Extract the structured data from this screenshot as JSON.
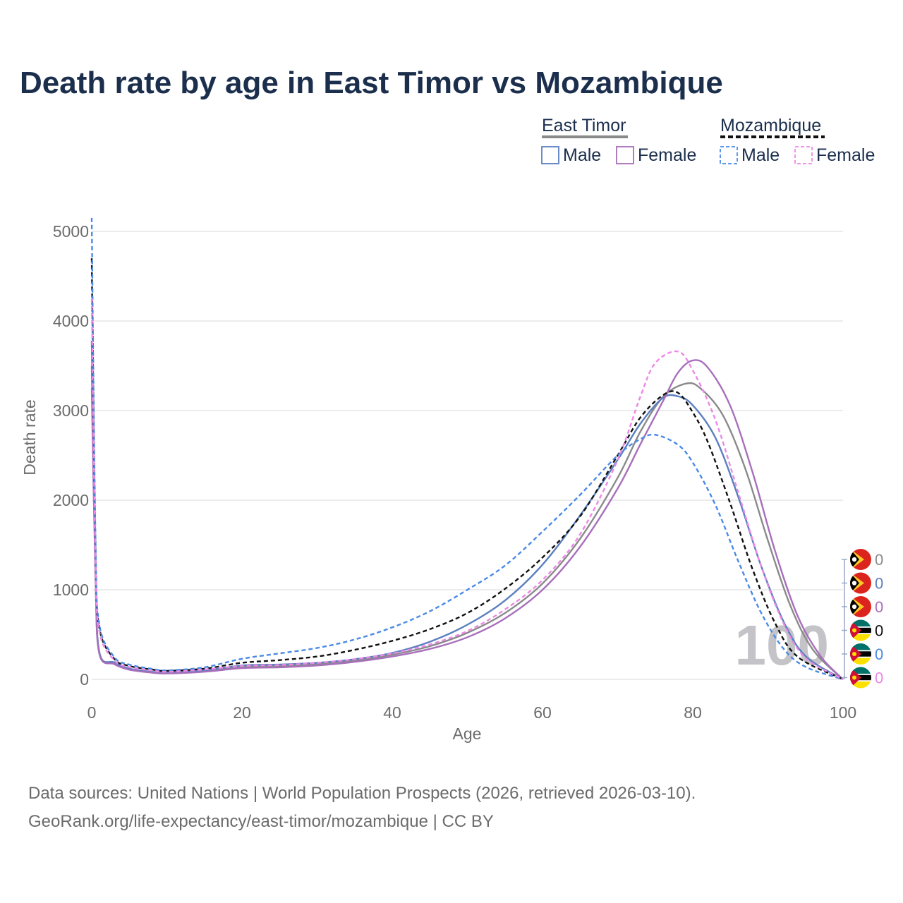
{
  "chart_data": {
    "type": "line",
    "title": "Death rate by age in East Timor vs Mozambique",
    "xlabel": "Age",
    "ylabel": "Death rate",
    "xlim": [
      0,
      100
    ],
    "ylim": [
      0,
      5000
    ],
    "x_ticks": [
      "0",
      "20",
      "40",
      "60",
      "80",
      "100"
    ],
    "y_ticks": [
      "0",
      "1000",
      "2000",
      "3000",
      "4000",
      "5000"
    ],
    "grid": true,
    "watermark": "100",
    "legend": {
      "placement": "top-right",
      "groups": [
        {
          "name": "East Timor",
          "style": "solid",
          "color": "#8a8a8a",
          "items": [
            {
              "label": "Male",
              "color": "#5b7fbf"
            },
            {
              "label": "Female",
              "color": "#a86fbb"
            }
          ]
        },
        {
          "name": "Mozambique",
          "style": "dashed",
          "color": "#111111",
          "items": [
            {
              "label": "Male",
              "color": "#4a8ae6"
            },
            {
              "label": "Female",
              "color": "#ec88e6"
            }
          ]
        }
      ]
    },
    "series": [
      {
        "name": "East Timor Total",
        "country": "East Timor",
        "color": "#8a8a8a",
        "dash": false,
        "end_label": "0",
        "points": [
          [
            0,
            3500
          ],
          [
            0.5,
            1200
          ],
          [
            1,
            300
          ],
          [
            3,
            180
          ],
          [
            5,
            115
          ],
          [
            8,
            82
          ],
          [
            10,
            72
          ],
          [
            15,
            95
          ],
          [
            20,
            140
          ],
          [
            25,
            150
          ],
          [
            30,
            170
          ],
          [
            35,
            210
          ],
          [
            40,
            275
          ],
          [
            45,
            370
          ],
          [
            50,
            520
          ],
          [
            55,
            740
          ],
          [
            60,
            1070
          ],
          [
            65,
            1570
          ],
          [
            70,
            2250
          ],
          [
            73,
            2760
          ],
          [
            76,
            3150
          ],
          [
            79,
            3300
          ],
          [
            81,
            3250
          ],
          [
            84,
            2950
          ],
          [
            87,
            2350
          ],
          [
            90,
            1550
          ],
          [
            93,
            820
          ],
          [
            96,
            330
          ],
          [
            100,
            0
          ]
        ]
      },
      {
        "name": "East Timor Male",
        "country": "East Timor",
        "color": "#5b7fbf",
        "dash": false,
        "end_label": "0",
        "points": [
          [
            0,
            3780
          ],
          [
            0.5,
            1300
          ],
          [
            1,
            310
          ],
          [
            3,
            190
          ],
          [
            5,
            120
          ],
          [
            8,
            85
          ],
          [
            10,
            75
          ],
          [
            15,
            100
          ],
          [
            20,
            155
          ],
          [
            25,
            165
          ],
          [
            30,
            185
          ],
          [
            35,
            225
          ],
          [
            40,
            295
          ],
          [
            45,
            420
          ],
          [
            50,
            610
          ],
          [
            55,
            880
          ],
          [
            60,
            1280
          ],
          [
            65,
            1830
          ],
          [
            70,
            2450
          ],
          [
            73,
            2850
          ],
          [
            76,
            3140
          ],
          [
            78,
            3160
          ],
          [
            80,
            3060
          ],
          [
            83,
            2700
          ],
          [
            86,
            2050
          ],
          [
            89,
            1290
          ],
          [
            92,
            660
          ],
          [
            95,
            260
          ],
          [
            100,
            0
          ]
        ]
      },
      {
        "name": "East Timor Female",
        "country": "East Timor",
        "color": "#a86fbb",
        "dash": false,
        "end_label": "0",
        "points": [
          [
            0,
            3250
          ],
          [
            0.5,
            1150
          ],
          [
            1,
            290
          ],
          [
            3,
            170
          ],
          [
            5,
            108
          ],
          [
            8,
            75
          ],
          [
            10,
            65
          ],
          [
            15,
            85
          ],
          [
            20,
            125
          ],
          [
            25,
            135
          ],
          [
            30,
            155
          ],
          [
            35,
            195
          ],
          [
            40,
            255
          ],
          [
            45,
            340
          ],
          [
            50,
            470
          ],
          [
            55,
            680
          ],
          [
            60,
            1000
          ],
          [
            65,
            1480
          ],
          [
            70,
            2130
          ],
          [
            73,
            2620
          ],
          [
            76,
            3100
          ],
          [
            78,
            3420
          ],
          [
            80,
            3560
          ],
          [
            82,
            3480
          ],
          [
            85,
            3050
          ],
          [
            88,
            2300
          ],
          [
            91,
            1420
          ],
          [
            94,
            700
          ],
          [
            97,
            260
          ],
          [
            100,
            0
          ]
        ]
      },
      {
        "name": "Mozambique Total",
        "country": "Mozambique",
        "color": "#111111",
        "dash": true,
        "end_label": "0",
        "points": [
          [
            0,
            4700
          ],
          [
            0.5,
            1500
          ],
          [
            1,
            580
          ],
          [
            3,
            230
          ],
          [
            5,
            150
          ],
          [
            8,
            110
          ],
          [
            10,
            95
          ],
          [
            15,
            120
          ],
          [
            20,
            185
          ],
          [
            25,
            215
          ],
          [
            30,
            255
          ],
          [
            35,
            330
          ],
          [
            40,
            430
          ],
          [
            45,
            560
          ],
          [
            50,
            740
          ],
          [
            55,
            1010
          ],
          [
            60,
            1360
          ],
          [
            65,
            1820
          ],
          [
            70,
            2500
          ],
          [
            73,
            2920
          ],
          [
            76,
            3170
          ],
          [
            78,
            3200
          ],
          [
            80,
            2980
          ],
          [
            82,
            2650
          ],
          [
            85,
            1960
          ],
          [
            88,
            1220
          ],
          [
            91,
            620
          ],
          [
            94,
            250
          ],
          [
            100,
            0
          ]
        ]
      },
      {
        "name": "Mozambique Male",
        "country": "Mozambique",
        "color": "#4a8ae6",
        "dash": true,
        "end_label": "0",
        "points": [
          [
            0,
            5150
          ],
          [
            0.5,
            1600
          ],
          [
            1,
            620
          ],
          [
            3,
            250
          ],
          [
            5,
            165
          ],
          [
            8,
            118
          ],
          [
            10,
            100
          ],
          [
            15,
            135
          ],
          [
            20,
            230
          ],
          [
            25,
            290
          ],
          [
            30,
            350
          ],
          [
            35,
            445
          ],
          [
            40,
            580
          ],
          [
            45,
            760
          ],
          [
            50,
            1000
          ],
          [
            55,
            1270
          ],
          [
            60,
            1650
          ],
          [
            65,
            2060
          ],
          [
            70,
            2500
          ],
          [
            73,
            2680
          ],
          [
            75,
            2730
          ],
          [
            78,
            2620
          ],
          [
            80,
            2420
          ],
          [
            83,
            1950
          ],
          [
            86,
            1330
          ],
          [
            89,
            760
          ],
          [
            92,
            350
          ],
          [
            95,
            140
          ],
          [
            100,
            0
          ]
        ]
      },
      {
        "name": "Mozambique Female",
        "country": "Mozambique",
        "color": "#ec88e6",
        "dash": true,
        "end_label": "0",
        "points": [
          [
            0,
            4250
          ],
          [
            0.5,
            1400
          ],
          [
            1,
            540
          ],
          [
            3,
            215
          ],
          [
            5,
            138
          ],
          [
            8,
            100
          ],
          [
            10,
            85
          ],
          [
            15,
            110
          ],
          [
            20,
            150
          ],
          [
            25,
            160
          ],
          [
            30,
            185
          ],
          [
            35,
            225
          ],
          [
            40,
            290
          ],
          [
            45,
            390
          ],
          [
            50,
            540
          ],
          [
            55,
            780
          ],
          [
            60,
            1110
          ],
          [
            65,
            1620
          ],
          [
            70,
            2450
          ],
          [
            73,
            3150
          ],
          [
            75,
            3530
          ],
          [
            78,
            3660
          ],
          [
            80,
            3450
          ],
          [
            83,
            2900
          ],
          [
            86,
            2100
          ],
          [
            89,
            1290
          ],
          [
            92,
            640
          ],
          [
            95,
            240
          ],
          [
            100,
            0
          ]
        ]
      }
    ]
  },
  "source": {
    "line1": "Data sources: United Nations | World Population Prospects (2026, retrieved 2026-03-10).",
    "line2": "GeoRank.org/life-expectancy/east-timor/mozambique | CC BY"
  }
}
